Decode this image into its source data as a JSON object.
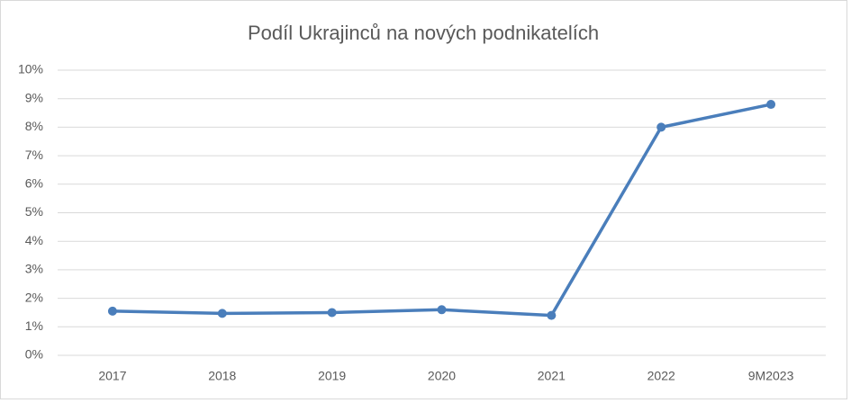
{
  "chart_data": {
    "type": "line",
    "title": "Podíl Ukrajinců na nových podnikatelích",
    "categories": [
      "2017",
      "2018",
      "2019",
      "2020",
      "2021",
      "2022",
      "9M2023"
    ],
    "series": [
      {
        "name": "Podíl Ukrajinců",
        "color": "#4a7ebb",
        "values": [
          1.55,
          1.47,
          1.5,
          1.6,
          1.4,
          8.0,
          8.8
        ]
      }
    ],
    "ylim": [
      0,
      10
    ],
    "yticks": [
      {
        "value": 0,
        "label": "0%"
      },
      {
        "value": 1,
        "label": "1%"
      },
      {
        "value": 2,
        "label": "2%"
      },
      {
        "value": 3,
        "label": "3%"
      },
      {
        "value": 4,
        "label": "4%"
      },
      {
        "value": 5,
        "label": "5%"
      },
      {
        "value": 6,
        "label": "6%"
      },
      {
        "value": 7,
        "label": "7%"
      },
      {
        "value": 8,
        "label": "8%"
      },
      {
        "value": 9,
        "label": "9%"
      },
      {
        "value": 10,
        "label": "10%"
      }
    ],
    "grid": true
  }
}
